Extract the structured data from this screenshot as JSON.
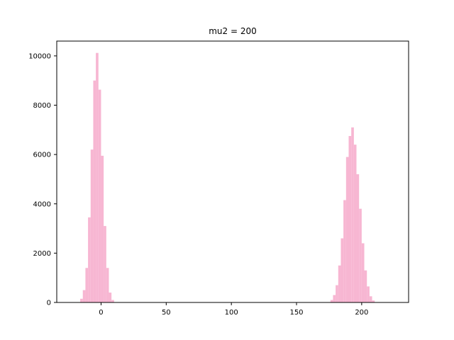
{
  "chart_data": {
    "type": "bar",
    "title": "mu2 = 200",
    "xlabel": "",
    "ylabel": "",
    "xlim": [
      -34,
      236
    ],
    "ylim": [
      0,
      10600
    ],
    "bar_color": "#f7b6d2",
    "grid": false,
    "x_ticks": [
      0,
      50,
      100,
      150,
      200
    ],
    "x_tick_labels": [
      "0",
      "50",
      "100",
      "150",
      "200"
    ],
    "y_ticks": [
      0,
      2000,
      4000,
      6000,
      8000,
      10000
    ],
    "y_tick_labels": [
      "0",
      "2000",
      "4000",
      "6000",
      "8000",
      "10000"
    ],
    "series": [
      {
        "bins": [
          {
            "x0": -16,
            "x1": -14,
            "value": 150
          },
          {
            "x0": -14,
            "x1": -12,
            "value": 500
          },
          {
            "x0": -12,
            "x1": -10,
            "value": 1400
          },
          {
            "x0": -10,
            "x1": -8,
            "value": 3450
          },
          {
            "x0": -8,
            "x1": -6,
            "value": 6200
          },
          {
            "x0": -6,
            "x1": -4,
            "value": 9000
          },
          {
            "x0": -4,
            "x1": -2,
            "value": 10120
          },
          {
            "x0": -2,
            "x1": 0,
            "value": 8630
          },
          {
            "x0": 0,
            "x1": 2,
            "value": 5950
          },
          {
            "x0": 2,
            "x1": 4,
            "value": 3100
          },
          {
            "x0": 4,
            "x1": 6,
            "value": 1400
          },
          {
            "x0": 6,
            "x1": 8,
            "value": 400
          },
          {
            "x0": 8,
            "x1": 10,
            "value": 100
          },
          {
            "x0": 176,
            "x1": 178,
            "value": 100
          },
          {
            "x0": 178,
            "x1": 180,
            "value": 300
          },
          {
            "x0": 180,
            "x1": 182,
            "value": 700
          },
          {
            "x0": 182,
            "x1": 184,
            "value": 1500
          },
          {
            "x0": 184,
            "x1": 186,
            "value": 2600
          },
          {
            "x0": 186,
            "x1": 188,
            "value": 4150
          },
          {
            "x0": 188,
            "x1": 190,
            "value": 5900
          },
          {
            "x0": 190,
            "x1": 192,
            "value": 6750
          },
          {
            "x0": 192,
            "x1": 194,
            "value": 7100
          },
          {
            "x0": 194,
            "x1": 196,
            "value": 6400
          },
          {
            "x0": 196,
            "x1": 198,
            "value": 5200
          },
          {
            "x0": 198,
            "x1": 200,
            "value": 3800
          },
          {
            "x0": 200,
            "x1": 202,
            "value": 2400
          },
          {
            "x0": 202,
            "x1": 204,
            "value": 1300
          },
          {
            "x0": 204,
            "x1": 206,
            "value": 650
          },
          {
            "x0": 206,
            "x1": 208,
            "value": 250
          },
          {
            "x0": 208,
            "x1": 210,
            "value": 80
          }
        ]
      }
    ]
  }
}
